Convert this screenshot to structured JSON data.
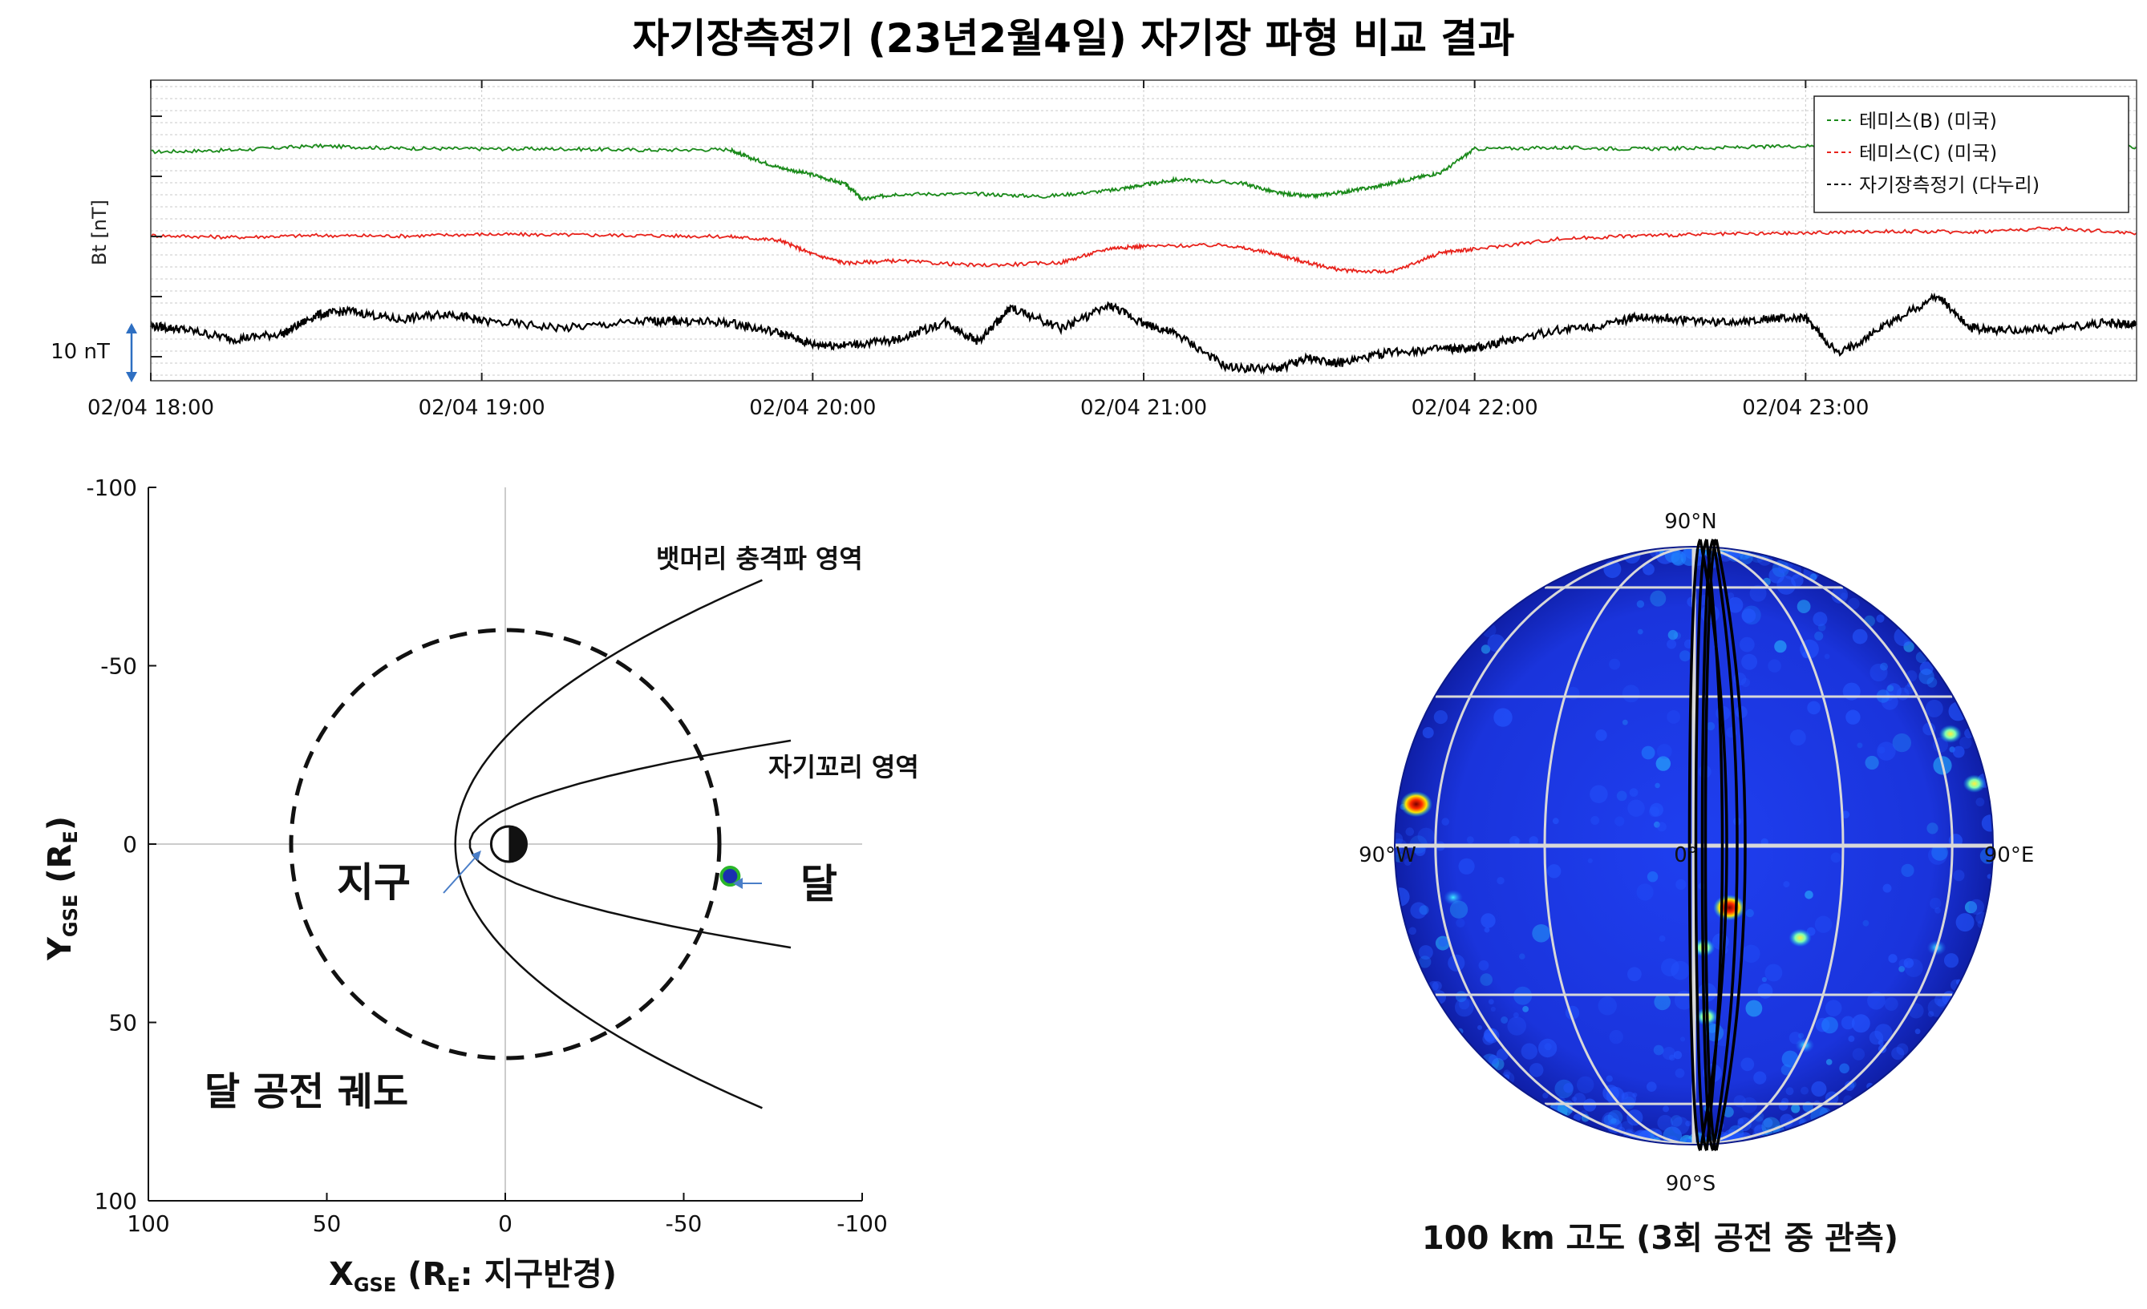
{
  "figure": {
    "title": "자기장측정기 (23년2월4일)  자기장 파형 비교 결과"
  },
  "chart_data": [
    {
      "type": "line",
      "title": "자기장측정기 (23년2월4일)  자기장 파형 비교 결과",
      "ylabel": "Bt [nT]",
      "scale_bar": "10 nT",
      "x_ticks": [
        "02/04 18:00",
        "02/04 19:00",
        "02/04 20:00",
        "02/04 21:00",
        "02/04 22:00",
        "02/04 23:00"
      ],
      "xlim": [
        "02/04 18:00",
        "02/04 24:00"
      ],
      "grid": true,
      "legend_position": "top-right",
      "series": [
        {
          "name": "테미스(B) (미국)",
          "color": "#1a8a1a",
          "x": [
            18.0,
            18.25,
            18.5,
            18.75,
            19.0,
            19.25,
            19.5,
            19.75,
            19.8,
            19.9,
            20.0,
            20.1,
            20.15,
            20.25,
            20.5,
            20.7,
            20.9,
            21.0,
            21.1,
            21.3,
            21.4,
            21.5,
            21.6,
            21.7,
            21.8,
            21.9,
            22.0,
            22.25,
            22.5,
            22.75,
            23.0,
            23.25,
            23.5,
            23.75,
            24.0
          ],
          "y": [
            30.0,
            30.3,
            31.0,
            30.6,
            30.5,
            30.5,
            30.3,
            30.4,
            29.2,
            27.4,
            26.2,
            24.6,
            22.1,
            23.0,
            23.0,
            22.6,
            23.6,
            24.5,
            25.4,
            24.8,
            23.2,
            22.6,
            23.3,
            24.2,
            25.4,
            26.6,
            30.5,
            30.7,
            30.5,
            30.7,
            31.0,
            30.7,
            31.1,
            31.2,
            30.8
          ]
        },
        {
          "name": "테미스(C) (미국)",
          "color": "#e8231c",
          "x": [
            18.0,
            18.25,
            18.5,
            18.75,
            19.0,
            19.25,
            19.5,
            19.75,
            19.9,
            20.0,
            20.1,
            20.25,
            20.5,
            20.75,
            20.9,
            21.0,
            21.25,
            21.4,
            21.5,
            21.6,
            21.75,
            21.9,
            22.0,
            22.25,
            22.5,
            22.75,
            23.0,
            23.25,
            23.5,
            23.75,
            24.0
          ],
          "y": [
            14.9,
            14.6,
            14.9,
            14.8,
            15.1,
            15.0,
            14.9,
            14.7,
            14.1,
            11.8,
            10.3,
            10.7,
            9.9,
            10.4,
            12.8,
            13.1,
            13.3,
            11.8,
            10.3,
            9.1,
            8.8,
            12.1,
            12.6,
            14.3,
            14.9,
            15.1,
            15.3,
            15.6,
            15.5,
            16.1,
            15.3
          ]
        },
        {
          "name": "자기장측정기 (다누리)",
          "color": "#000000",
          "x": [
            18.0,
            18.1,
            18.25,
            18.4,
            18.5,
            18.6,
            18.75,
            18.9,
            19.0,
            19.25,
            19.5,
            19.6,
            19.75,
            19.9,
            20.0,
            20.1,
            20.25,
            20.4,
            20.5,
            20.6,
            20.75,
            20.9,
            21.0,
            21.1,
            21.25,
            21.4,
            21.5,
            21.6,
            21.75,
            21.9,
            22.0,
            22.1,
            22.25,
            22.4,
            22.5,
            22.6,
            22.75,
            22.9,
            23.0,
            23.1,
            23.25,
            23.4,
            23.5,
            23.6,
            23.75,
            23.9,
            24.0
          ],
          "y": [
            -0.2,
            -0.8,
            -2.4,
            -1.5,
            1.6,
            2.3,
            0.8,
            1.9,
            0.6,
            -0.6,
            0.6,
            0.6,
            0.3,
            -1.4,
            -3.3,
            -3.4,
            -2.6,
            0.4,
            -2.8,
            2.8,
            -0.6,
            3.2,
            0.2,
            -1.6,
            -7.1,
            -7.4,
            -5.6,
            -6.4,
            -4.5,
            -4.1,
            -4.0,
            -2.6,
            -0.9,
            0.0,
            1.4,
            0.9,
            0.4,
            1.0,
            1.0,
            -5.0,
            0.2,
            4.8,
            -0.6,
            -0.9,
            -0.8,
            0.3,
            0.0
          ]
        }
      ]
    },
    {
      "type": "scatter",
      "xlabel": "X",
      "xlabel_sub": "GSE",
      "xlabel_rest": " (R",
      "xlabel_sub2": "E",
      "xlabel_tail": ": 지구반경)",
      "ylabel": "Y",
      "ylabel_sub": "GSE",
      "ylabel_rest": " (R",
      "ylabel_sub2": "E",
      "ylabel_tail": ")",
      "xlim": [
        100,
        -100
      ],
      "ylim": [
        -100,
        100
      ],
      "x_ticks": [
        "100",
        "50",
        "0",
        "-50",
        "-100"
      ],
      "y_ticks": [
        "-100",
        "-50",
        "0",
        "50",
        "100"
      ],
      "moon_orbit_radius": 60,
      "moon_position": [
        -63,
        9
      ],
      "moon_color": "#1a2fb0",
      "bow_shock": {
        "standoff_x": 14,
        "y_at_x_minus_100": 74
      },
      "magnetopause": {
        "standoff_x": 10,
        "y_at_x_minus_100": 29
      },
      "labels": {
        "bow_shock": "뱃머리 충격파 영역",
        "magnetotail": "자기꼬리 영역",
        "earth": "지구",
        "moon": "달",
        "orbit": "달 공전 궤도"
      }
    },
    {
      "type": "heatmap",
      "projection": "orthographic globe",
      "colormap": "jet",
      "labels": {
        "north": "90°N",
        "south": "90°S",
        "west": "90°W",
        "east": "90°E",
        "center": "0°"
      },
      "caption": "100 km 고도 (3회 공전 중 관측)",
      "hotspots": [
        {
          "lon": 7,
          "lat": -12,
          "intensity": "high"
        },
        {
          "lon": -70,
          "lat": 8,
          "intensity": "high"
        },
        {
          "lon": 2,
          "lat": -20,
          "intensity": "medium"
        },
        {
          "lon": 22,
          "lat": -18,
          "intensity": "medium"
        },
        {
          "lon": 68,
          "lat": 22,
          "intensity": "medium"
        },
        {
          "lon": 74,
          "lat": 12,
          "intensity": "medium"
        },
        {
          "lon": 3,
          "lat": -35,
          "intensity": "medium"
        },
        {
          "lon": -55,
          "lat": -10,
          "intensity": "low"
        },
        {
          "lon": 60,
          "lat": -20,
          "intensity": "low"
        },
        {
          "lon": 30,
          "lat": -42,
          "intensity": "low"
        }
      ]
    }
  ]
}
